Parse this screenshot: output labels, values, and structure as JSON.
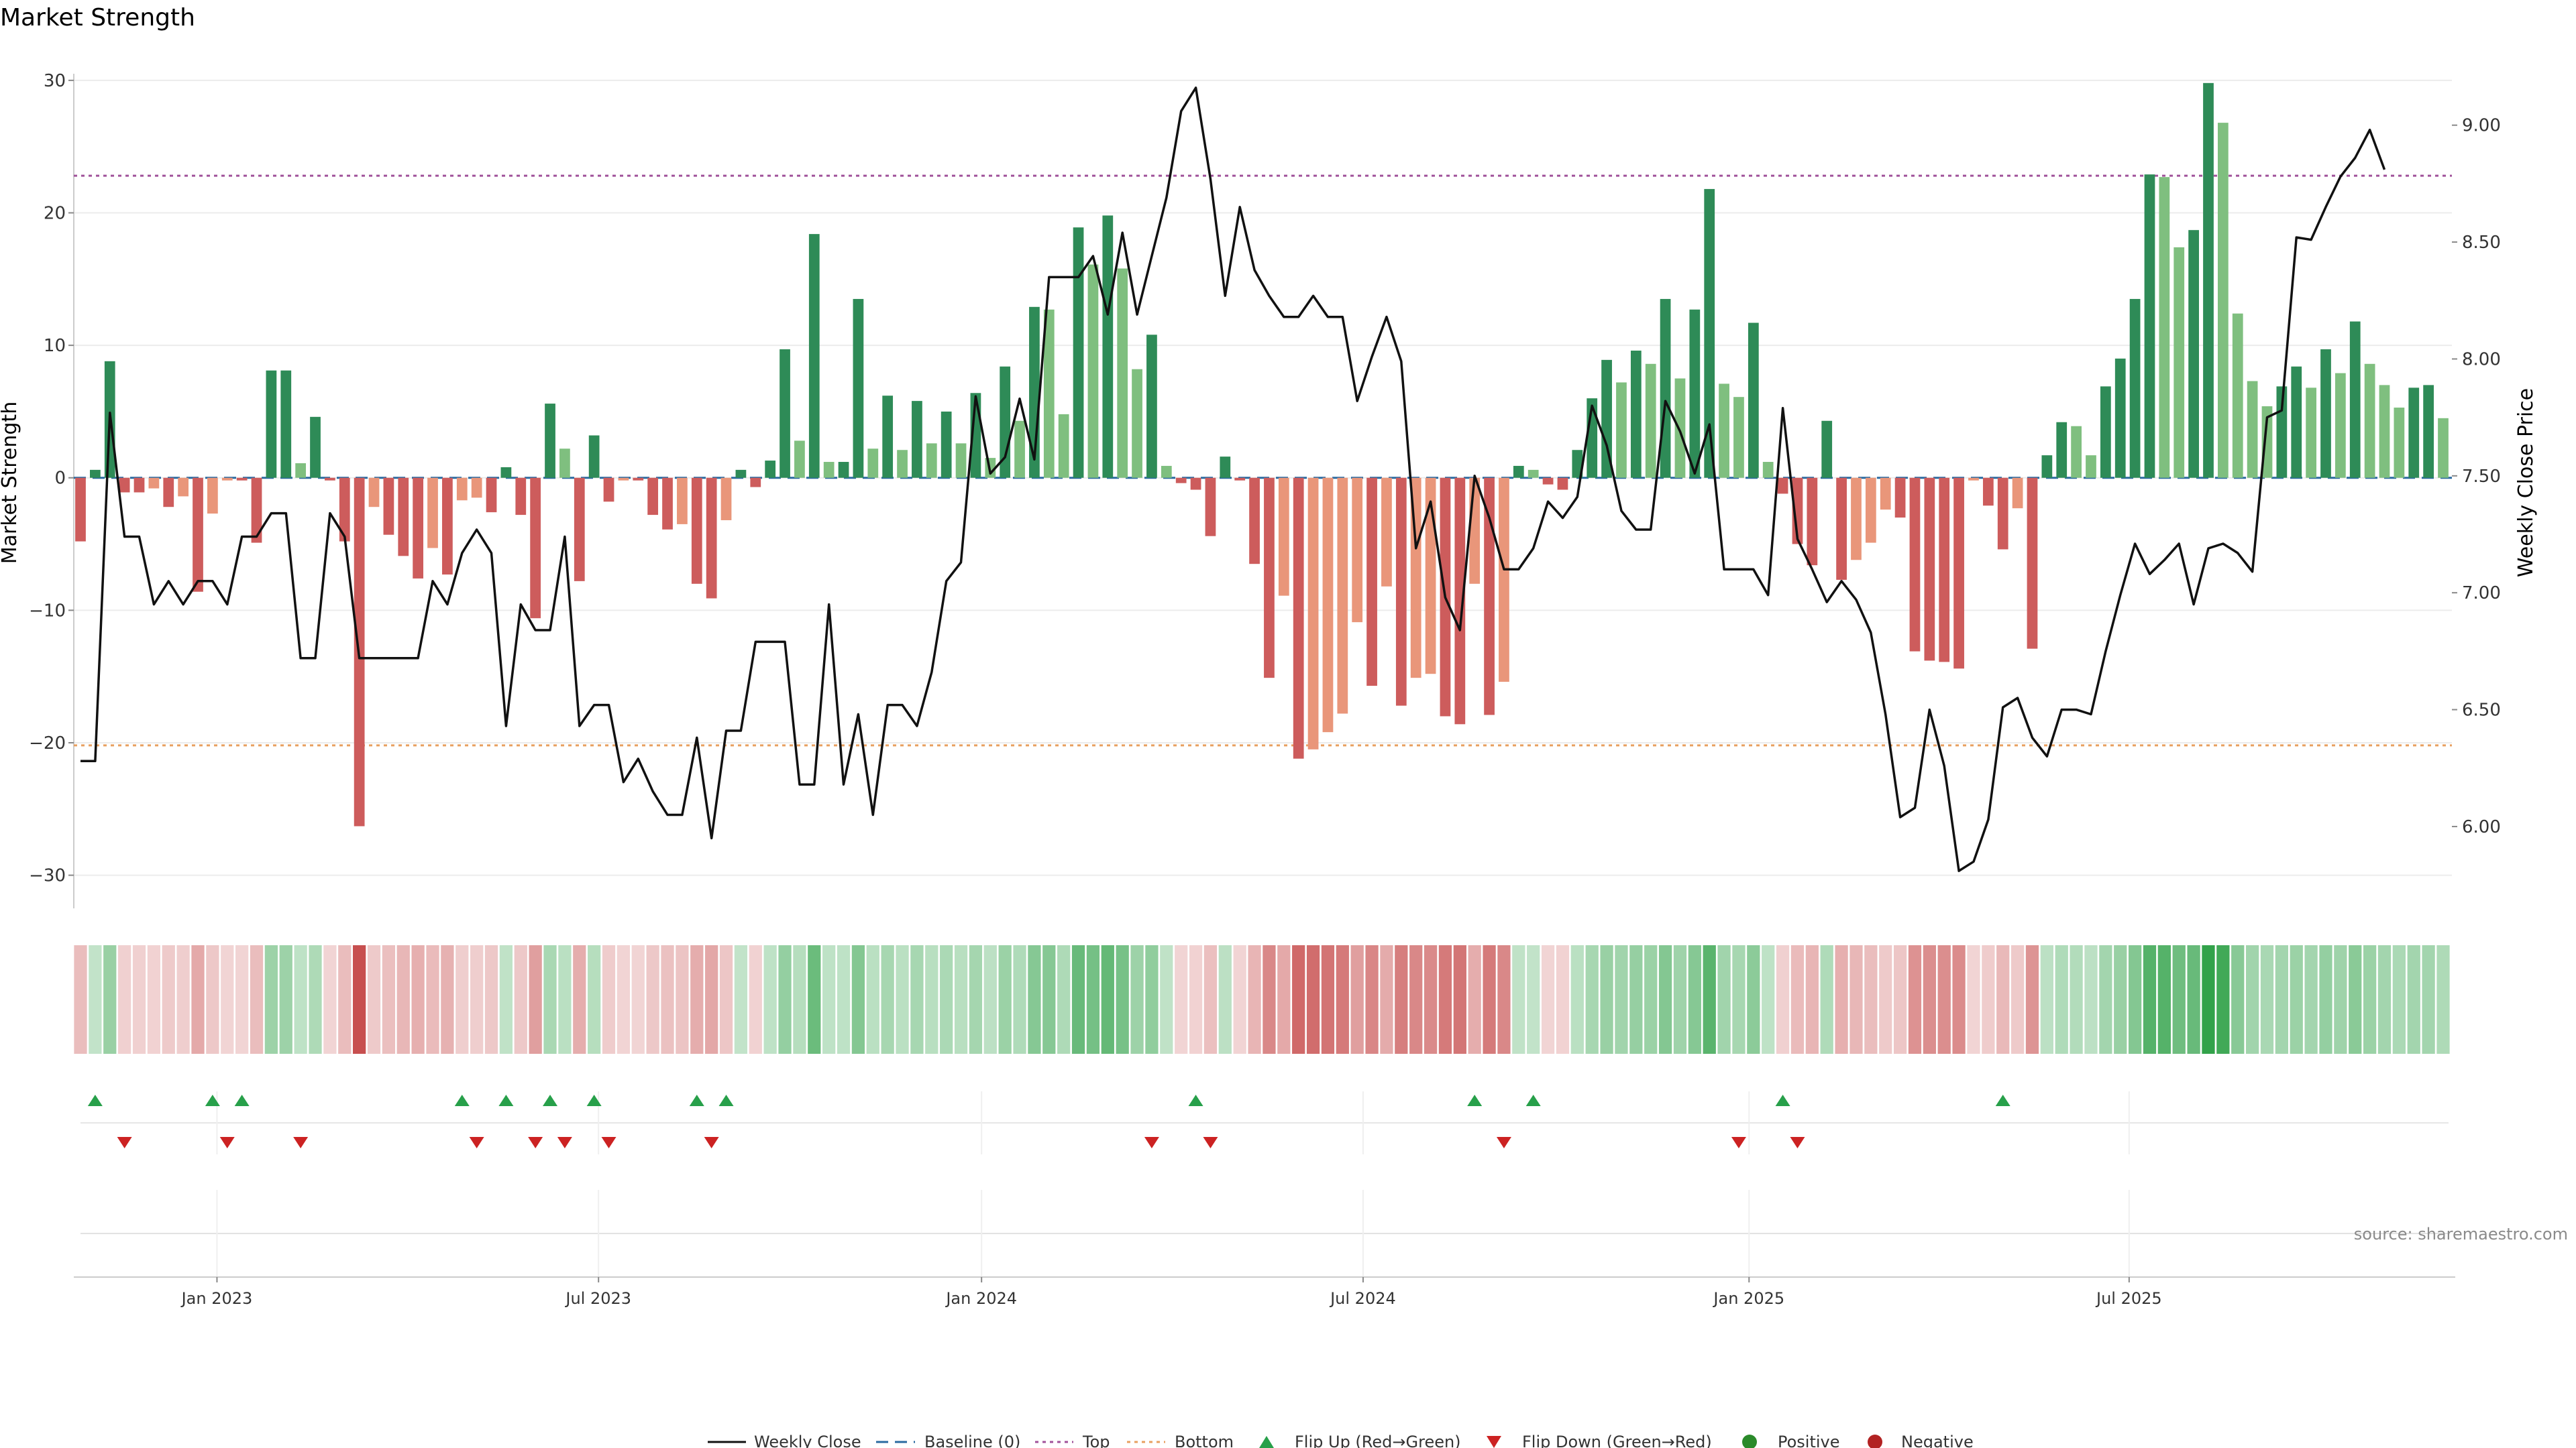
{
  "chart_data": {
    "type": "bar",
    "title": "Market Strength",
    "ylabel": "Market Strength",
    "y2label": "Weekly Close Price",
    "ylim": [
      -32.5,
      30.5
    ],
    "y2lim": [
      5.65,
      9.22
    ],
    "y_ticks": [
      "30",
      "20",
      "10",
      "0",
      "−10",
      "−20",
      "−30"
    ],
    "y2_ticks": [
      "9.00",
      "8.50",
      "8.00",
      "7.50",
      "7.00",
      "6.50",
      "6.00"
    ],
    "top_line": 22.8,
    "bottom_line": -20.2,
    "date_ticks": [
      {
        "label": "Jan 2023",
        "week": 9.3
      },
      {
        "label": "Jul 2023",
        "week": 35.3
      },
      {
        "label": "Jan 2024",
        "week": 61.4
      },
      {
        "label": "Jul 2024",
        "week": 87.4
      },
      {
        "label": "Jan 2025",
        "week": 113.7
      },
      {
        "label": "Jul 2025",
        "week": 139.6
      }
    ],
    "strength": [
      -4.8,
      0.6,
      8.8,
      -1.1,
      -1.1,
      -0.8,
      -2.2,
      -1.4,
      -8.6,
      -2.7,
      -0.2,
      -0.2,
      -4.9,
      8.1,
      8.1,
      1.1,
      4.6,
      -0.2,
      -4.8,
      -26.3,
      -2.2,
      -4.3,
      -5.9,
      -7.6,
      -5.3,
      -7.3,
      -1.7,
      -1.5,
      -2.6,
      0.8,
      -2.8,
      -10.6,
      5.6,
      2.2,
      -7.8,
      3.2,
      -1.8,
      -0.2,
      -0.2,
      -2.8,
      -3.9,
      -3.5,
      -8.0,
      -9.1,
      -3.2,
      0.6,
      -0.7,
      1.3,
      9.7,
      2.8,
      18.4,
      1.2,
      1.2,
      13.5,
      2.2,
      6.2,
      2.1,
      5.8,
      2.6,
      5.0,
      2.6,
      6.4,
      1.5,
      8.4,
      4.3,
      12.9,
      12.7,
      4.8,
      18.9,
      16.1,
      19.8,
      15.8,
      8.2,
      10.8,
      0.9,
      -0.4,
      -0.9,
      -4.4,
      1.6,
      -0.2,
      -6.5,
      -15.1,
      -8.9,
      -21.2,
      -20.5,
      -19.2,
      -17.8,
      -10.9,
      -15.7,
      -8.2,
      -17.2,
      -15.1,
      -14.8,
      -18.0,
      -18.6,
      -8.0,
      -17.9,
      -15.4,
      0.9,
      0.6,
      -0.5,
      -0.9,
      2.1,
      6.0,
      8.9,
      7.2,
      9.6,
      8.6,
      13.5,
      7.5,
      12.7,
      21.8,
      7.1,
      6.1,
      11.7,
      1.2,
      -1.2,
      -5.0,
      -6.6,
      4.3,
      -7.7,
      -6.2,
      -4.9,
      -2.4,
      -3.0,
      -13.1,
      -13.8,
      -13.9,
      -14.4,
      -0.2,
      -2.1,
      -5.4,
      -2.3,
      -12.9,
      1.7,
      4.2,
      3.9,
      1.7,
      6.9,
      9.0,
      13.5,
      22.9,
      22.7,
      17.4,
      18.7,
      29.8,
      26.8,
      12.4,
      7.3,
      5.4,
      6.9,
      8.4,
      6.8,
      9.7,
      7.9,
      11.8,
      8.6,
      7.0,
      5.3,
      6.8,
      7.0,
      4.5
    ],
    "weekly_close": [
      6.28,
      6.28,
      7.77,
      7.24,
      7.24,
      6.95,
      7.05,
      6.95,
      7.05,
      7.05,
      6.95,
      7.24,
      7.24,
      7.34,
      7.34,
      6.72,
      6.72,
      7.34,
      7.24,
      6.72,
      6.72,
      6.72,
      6.72,
      6.72,
      7.05,
      6.95,
      7.17,
      7.27,
      7.17,
      6.43,
      6.95,
      6.84,
      6.84,
      7.24,
      6.43,
      6.52,
      6.52,
      6.19,
      6.29,
      6.15,
      6.05,
      6.05,
      6.38,
      5.95,
      6.41,
      6.41,
      6.79,
      6.79,
      6.79,
      6.18,
      6.18,
      6.95,
      6.18,
      6.48,
      6.05,
      6.52,
      6.52,
      6.43,
      6.66,
      7.05,
      7.13,
      7.84,
      7.51,
      7.58,
      7.83,
      7.57,
      8.35,
      8.35,
      8.35,
      8.44,
      8.19,
      8.54,
      8.19,
      8.44,
      8.69,
      9.06,
      9.16,
      8.77,
      8.27,
      8.65,
      8.38,
      8.27,
      8.18,
      8.18,
      8.27,
      8.18,
      8.18,
      7.82,
      8.01,
      8.18,
      7.99,
      7.19,
      7.39,
      6.98,
      6.84,
      7.5,
      7.32,
      7.1,
      7.1,
      7.19,
      7.39,
      7.32,
      7.41,
      7.8,
      7.63,
      7.35,
      7.27,
      7.27,
      7.82,
      7.69,
      7.51,
      7.72,
      7.1,
      7.1,
      7.1,
      6.99,
      7.79,
      7.23,
      7.1,
      6.96,
      7.05,
      6.97,
      6.83,
      6.48,
      6.04,
      6.08,
      6.5,
      6.26,
      5.81,
      5.85,
      6.03,
      6.51,
      6.55,
      6.38,
      6.3,
      6.5,
      6.5,
      6.48,
      6.75,
      6.99,
      7.21,
      7.08,
      7.14,
      7.21,
      6.95,
      7.19,
      7.21,
      7.17,
      7.09,
      7.75,
      7.78,
      8.52,
      8.51,
      8.65,
      8.78,
      8.86,
      8.98,
      8.81
    ],
    "flips_up": [
      1,
      9,
      11,
      26,
      29,
      32,
      35,
      42,
      44,
      76,
      95,
      99,
      116,
      131
    ],
    "flips_down": [
      3,
      10,
      15,
      27,
      31,
      33,
      36,
      43,
      73,
      77,
      97,
      113,
      117
    ]
  },
  "colors": {
    "positive_strong": "#2e8b57",
    "positive_weak": "#7fbf7f",
    "negative_strong": "#cd5c5c",
    "negative_weak": "#e9967a",
    "top": "#a0529a",
    "bottom": "#e8a060",
    "flip_up": "#27a04a",
    "flip_down": "#cc2222",
    "positive_dot": "#2a8a2a",
    "negative_dot": "#b22222"
  },
  "legend": {
    "weekly_close": "Weekly Close",
    "baseline": "Baseline (0)",
    "top": "Top",
    "bottom": "Bottom",
    "flip_up": "Flip Up (Red→Green)",
    "flip_down": "Flip Down (Green→Red)",
    "positive": "Positive",
    "negative": "Negative"
  },
  "source": "source: sharemaestro.com"
}
